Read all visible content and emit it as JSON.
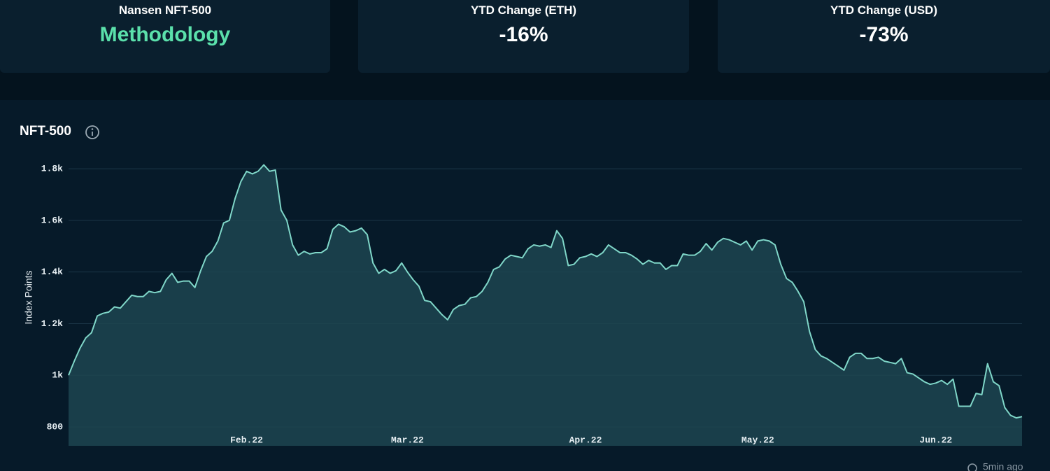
{
  "cards": [
    {
      "label": "Nansen NFT-500",
      "value": "Methodology"
    },
    {
      "label": "YTD Change (ETH)",
      "value": "-16%"
    },
    {
      "label": "YTD Change (USD)",
      "value": "-73%"
    }
  ],
  "chart_data": {
    "type": "line",
    "title": "NFT-500",
    "ylabel": "Index Points",
    "color": "#7fd6c8",
    "fill": "#1d4550",
    "grid": true,
    "x": [
      0,
      1,
      2,
      3,
      4,
      5,
      6,
      7,
      8,
      9,
      10,
      11,
      12,
      13,
      14,
      15,
      16,
      17,
      18,
      19,
      20,
      21,
      22,
      23,
      24,
      25,
      26,
      27,
      28,
      29,
      30,
      31,
      32,
      33,
      34,
      35,
      36,
      37,
      38,
      39,
      40,
      41,
      42,
      43,
      44,
      45,
      46,
      47,
      48,
      49,
      50,
      51,
      52,
      53,
      54,
      55,
      56,
      57,
      58,
      59,
      60,
      61,
      62,
      63,
      64,
      65,
      66,
      67,
      68,
      69,
      70,
      71,
      72,
      73,
      74,
      75,
      76,
      77,
      78,
      79,
      80,
      81,
      82,
      83,
      84,
      85,
      86,
      87,
      88,
      89,
      90,
      91,
      92,
      93,
      94,
      95,
      96,
      97,
      98,
      99,
      100,
      101,
      102,
      103,
      104,
      105,
      106,
      107,
      108,
      109,
      110,
      111,
      112,
      113,
      114,
      115,
      116,
      117,
      118,
      119,
      120,
      121,
      122,
      123,
      124,
      125,
      126,
      127,
      128,
      129,
      130,
      131,
      132,
      133,
      134,
      135,
      136,
      137,
      138,
      139,
      140,
      141,
      142,
      143,
      144,
      145,
      146,
      147,
      148,
      149,
      150,
      151,
      152,
      153,
      154,
      155,
      156,
      157,
      158,
      159,
      160,
      161,
      162,
      163,
      164,
      165,
      166
    ],
    "values": [
      1000,
      1055,
      1105,
      1145,
      1165,
      1230,
      1240,
      1245,
      1265,
      1260,
      1285,
      1310,
      1305,
      1305,
      1325,
      1320,
      1325,
      1370,
      1395,
      1360,
      1365,
      1365,
      1340,
      1405,
      1460,
      1480,
      1520,
      1590,
      1600,
      1685,
      1750,
      1790,
      1780,
      1790,
      1815,
      1790,
      1795,
      1640,
      1600,
      1505,
      1465,
      1480,
      1470,
      1475,
      1475,
      1490,
      1565,
      1585,
      1575,
      1555,
      1560,
      1570,
      1545,
      1435,
      1395,
      1410,
      1395,
      1405,
      1435,
      1400,
      1370,
      1345,
      1290,
      1285,
      1260,
      1235,
      1215,
      1255,
      1270,
      1275,
      1300,
      1305,
      1325,
      1360,
      1410,
      1420,
      1450,
      1465,
      1460,
      1455,
      1490,
      1505,
      1500,
      1505,
      1495,
      1560,
      1530,
      1425,
      1430,
      1455,
      1460,
      1470,
      1460,
      1475,
      1505,
      1490,
      1475,
      1475,
      1465,
      1450,
      1430,
      1445,
      1435,
      1435,
      1410,
      1425,
      1425,
      1470,
      1465,
      1465,
      1480,
      1510,
      1485,
      1515,
      1530,
      1525,
      1515,
      1505,
      1520,
      1485,
      1520,
      1525,
      1520,
      1505,
      1430,
      1375,
      1360,
      1325,
      1285,
      1170,
      1100,
      1075,
      1065,
      1050,
      1035,
      1020,
      1070,
      1085,
      1085,
      1065,
      1065,
      1070,
      1055,
      1050,
      1045,
      1065,
      1010,
      1005,
      990,
      975,
      965,
      970,
      980,
      965,
      985,
      880,
      880,
      880,
      930,
      925,
      1045,
      975,
      960,
      875,
      845,
      835,
      840
    ],
    "xlim": [
      0,
      166
    ],
    "xticks": [
      {
        "value": 31,
        "label": "Feb.22"
      },
      {
        "value": 59,
        "label": "Mar.22"
      },
      {
        "value": 90,
        "label": "Apr.22"
      },
      {
        "value": 120,
        "label": "May.22"
      },
      {
        "value": 151,
        "label": "Jun.22"
      }
    ],
    "ylim": [
      727,
      1830
    ],
    "yticks": [
      800,
      {
        "value": 1000,
        "label": "1k"
      },
      {
        "value": 1200,
        "label": "1.2k"
      },
      {
        "value": 1400,
        "label": "1.4k"
      },
      {
        "value": 1600,
        "label": "1.6k"
      },
      {
        "value": 1800,
        "label": "1.8k"
      }
    ]
  },
  "footer": {
    "updated": "5min ago"
  }
}
